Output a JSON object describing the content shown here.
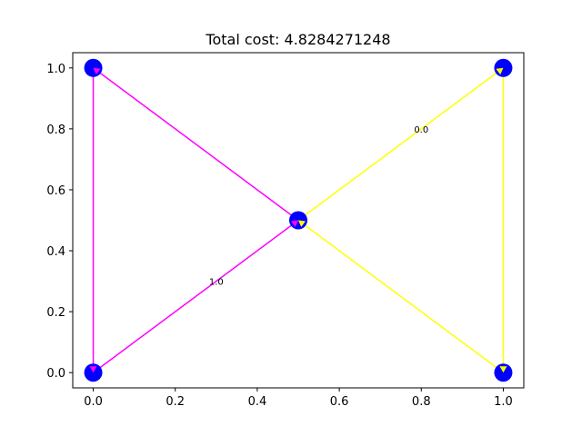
{
  "chart_data": {
    "type": "scatter",
    "title": "Total cost: 4.8284271248",
    "xlabel": "",
    "ylabel": "",
    "xlim": [
      -0.05,
      1.05
    ],
    "ylim": [
      -0.05,
      1.05
    ],
    "xticks": [
      0.0,
      0.2,
      0.4,
      0.6,
      0.8,
      1.0
    ],
    "yticks": [
      0.0,
      0.2,
      0.4,
      0.6,
      0.8,
      1.0
    ],
    "xtick_labels": [
      "0.0",
      "0.2",
      "0.4",
      "0.6",
      "0.8",
      "1.0"
    ],
    "ytick_labels": [
      "0.0",
      "0.2",
      "0.4",
      "0.6",
      "0.8",
      "1.0"
    ],
    "grid": false,
    "node_color": "#0000ff",
    "nodes": [
      {
        "x": 0.0,
        "y": 0.0
      },
      {
        "x": 0.0,
        "y": 1.0
      },
      {
        "x": 0.5,
        "y": 0.5
      },
      {
        "x": 1.0,
        "y": 1.0
      },
      {
        "x": 1.0,
        "y": 0.0
      }
    ],
    "series": [
      {
        "color": "#ff00ff",
        "path": [
          [
            0.5,
            0.5
          ],
          [
            0.0,
            1.0
          ],
          [
            0.0,
            0.0
          ],
          [
            0.5,
            0.5
          ]
        ],
        "label": {
          "text": "1.0",
          "x": 0.3,
          "y": 0.3
        }
      },
      {
        "color": "#ffff00",
        "path": [
          [
            0.5,
            0.5
          ],
          [
            1.0,
            1.0
          ],
          [
            1.0,
            0.0
          ],
          [
            0.5,
            0.5
          ]
        ],
        "label": {
          "text": "0.0",
          "x": 0.8,
          "y": 0.8
        }
      }
    ]
  }
}
